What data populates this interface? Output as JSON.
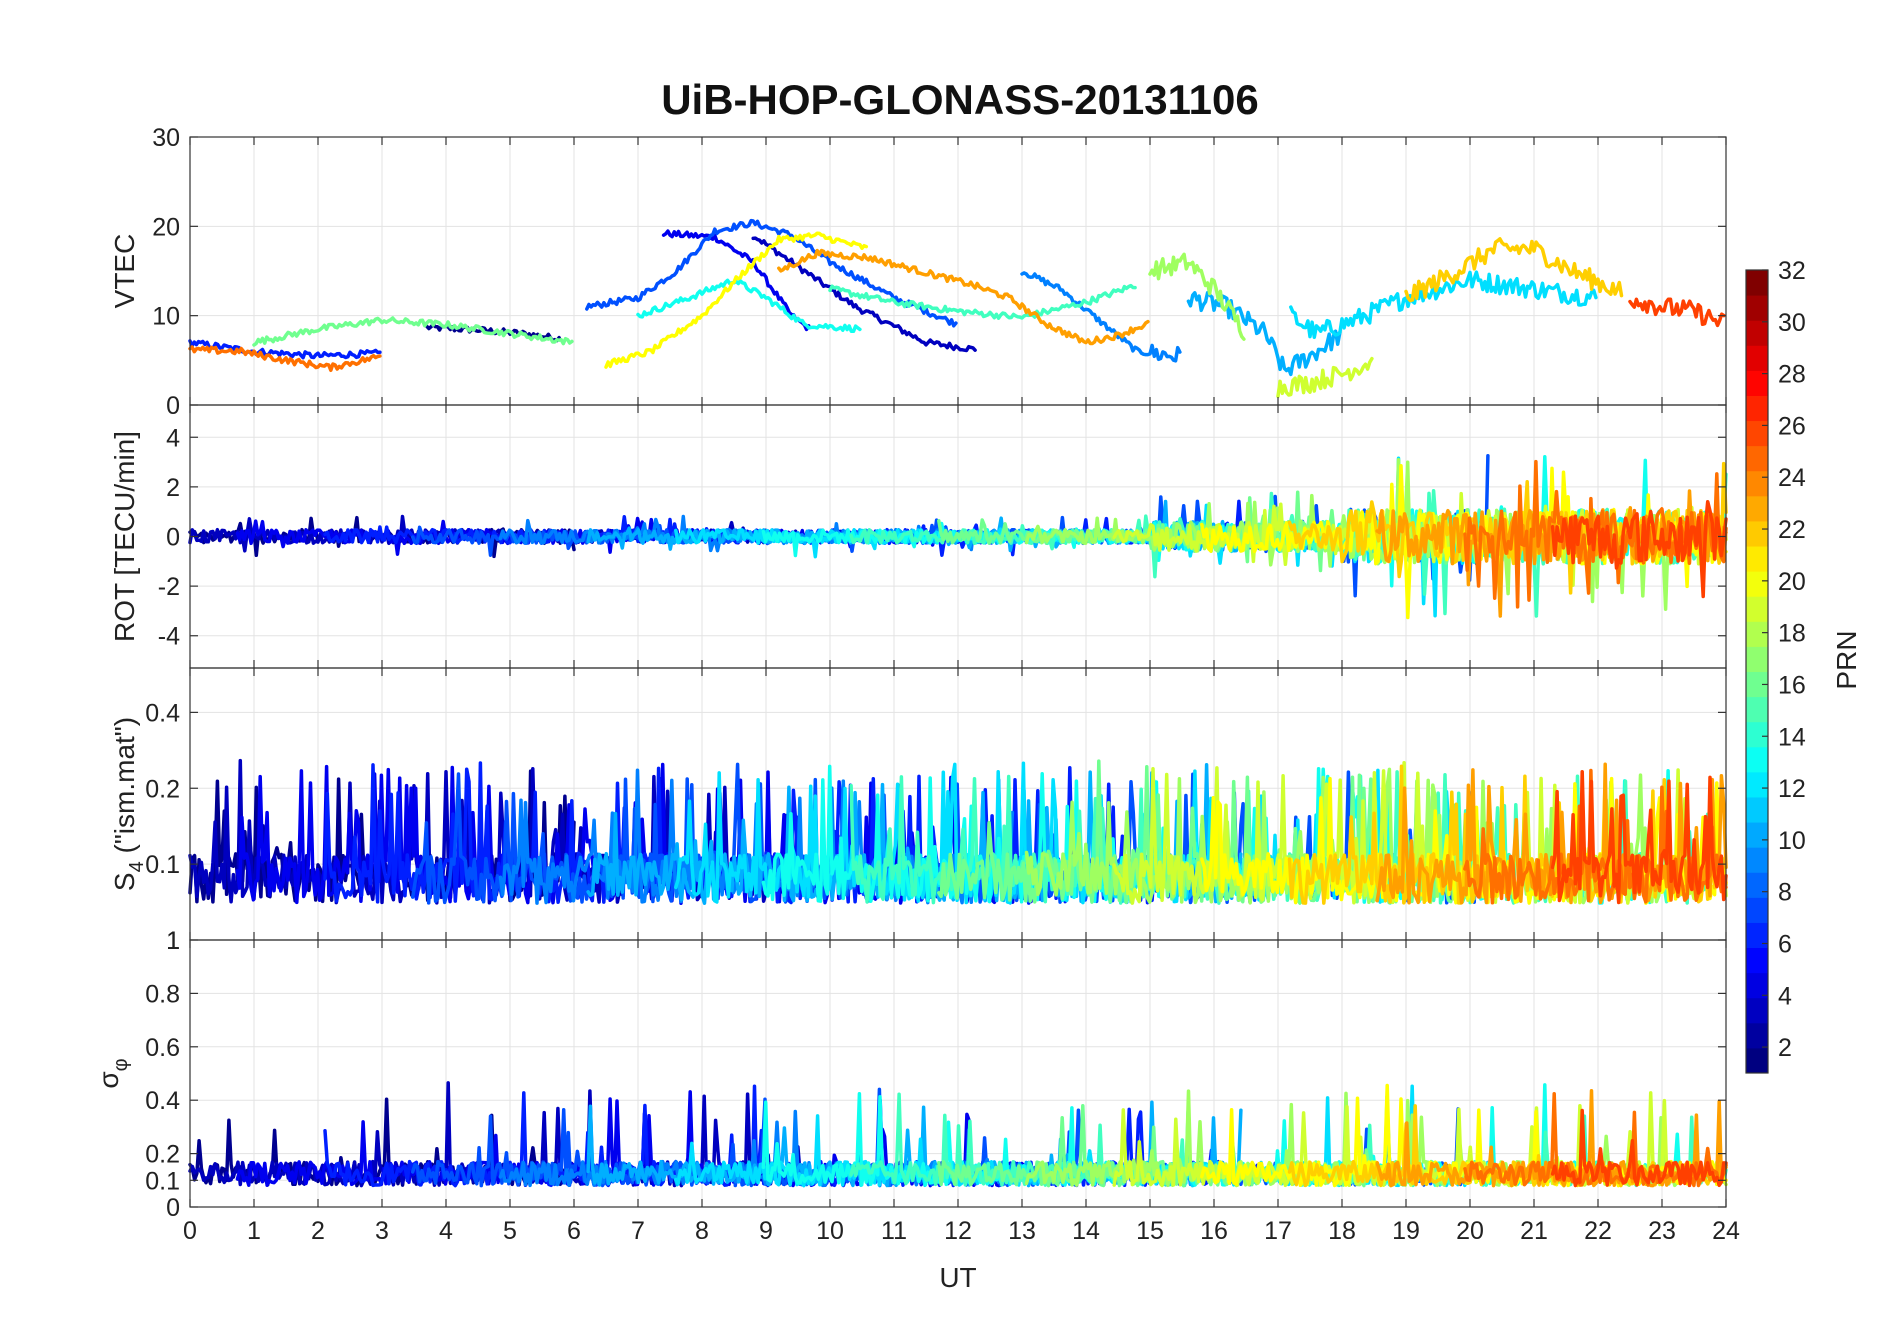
{
  "chart_data": {
    "type": "line",
    "title": "UiB-HOP-GLONASS-20131106",
    "xlabel": "UT",
    "xlim": [
      0,
      24
    ],
    "xticks": [
      0,
      1,
      2,
      3,
      4,
      5,
      6,
      7,
      8,
      9,
      10,
      11,
      12,
      13,
      14,
      15,
      16,
      17,
      18,
      19,
      20,
      21,
      22,
      23,
      24
    ],
    "panels": [
      {
        "id": "vtec",
        "ylabel": "VTEC",
        "ylim": [
          0,
          30
        ],
        "yticks": [
          0,
          10,
          20,
          30
        ]
      },
      {
        "id": "rot",
        "ylabel": "ROT [TECU/min]",
        "ylim": [
          -5.3,
          5.3
        ],
        "yticks": [
          -4,
          -2,
          0,
          2,
          4
        ]
      },
      {
        "id": "s4",
        "ylabel": "S4 (\"ism.mat\")",
        "ylabel_main": "S",
        "ylabel_sub": "4",
        "ylabel_rest": " (\"ism.mat\")",
        "ylim": [
          0.05,
          0.6
        ],
        "scale": "log",
        "yticks": [
          0.1,
          0.2,
          0.4
        ],
        "extra_tick": "1"
      },
      {
        "id": "sigphi",
        "ylabel": "σφ",
        "ylabel_main": "σ",
        "ylabel_sub": "φ",
        "ylim": [
          0,
          1
        ],
        "yticks": [
          0,
          0.1,
          0.2,
          0.4,
          0.6,
          0.8,
          1
        ]
      }
    ],
    "colorbar": {
      "label": "PRN",
      "range": [
        1,
        32
      ],
      "ticks": [
        2,
        4,
        6,
        8,
        10,
        12,
        14,
        16,
        18,
        20,
        22,
        24,
        26,
        28,
        30,
        32
      ],
      "colormap": "jet"
    },
    "series": [
      {
        "prn": 1,
        "color": "#00008f",
        "vtec": [
          [
            3.7,
            8.7
          ],
          [
            4.5,
            8.4
          ],
          [
            5.2,
            8.0
          ],
          [
            5.8,
            7.4
          ]
        ]
      },
      {
        "prn": 2,
        "color": "#0000bf",
        "vtec": [
          [
            8.8,
            19.0
          ],
          [
            9.6,
            15.0
          ],
          [
            10.4,
            11.0
          ],
          [
            11.5,
            7.0
          ],
          [
            12.3,
            6.2
          ]
        ]
      },
      {
        "prn": 3,
        "color": "#0000ef",
        "vtec": [
          [
            7.4,
            19.2
          ],
          [
            8.2,
            18.8
          ],
          [
            8.8,
            16.0
          ],
          [
            9.4,
            10.0
          ],
          [
            9.7,
            8.4
          ]
        ]
      },
      {
        "prn": 4,
        "color": "#001fff",
        "vtec": [
          [
            0.0,
            7.0
          ],
          [
            1.0,
            6.0
          ],
          [
            2.0,
            5.5
          ],
          [
            3.0,
            5.8
          ]
        ]
      },
      {
        "prn": 5,
        "color": "#0050ff",
        "vtec": [
          [
            6.2,
            11.0
          ],
          [
            7.0,
            12.0
          ],
          [
            7.6,
            15.0
          ],
          [
            8.2,
            19.5
          ],
          [
            8.8,
            20.4
          ],
          [
            9.4,
            19.0
          ],
          [
            10.0,
            16.0
          ],
          [
            11.0,
            12.0
          ],
          [
            12.0,
            9.0
          ]
        ]
      },
      {
        "prn": 6,
        "color": "#0080ff",
        "vtec": [
          [
            13.0,
            15.0
          ],
          [
            13.6,
            13.0
          ],
          [
            14.2,
            9.5
          ],
          [
            14.8,
            6.0
          ],
          [
            15.5,
            5.4
          ]
        ]
      },
      {
        "prn": 7,
        "color": "#00afff",
        "vtec": [
          [
            15.6,
            12.0
          ],
          [
            16.2,
            11.0
          ],
          [
            16.8,
            8.0
          ],
          [
            17.1,
            3.8
          ],
          [
            17.5,
            5.5
          ],
          [
            18.0,
            8.0
          ]
        ]
      },
      {
        "prn": 8,
        "color": "#00dfff",
        "vtec": [
          [
            17.2,
            10.0
          ],
          [
            17.6,
            8.0
          ],
          [
            18.2,
            9.5
          ],
          [
            19.0,
            12.0
          ],
          [
            20.0,
            14.0
          ],
          [
            21.0,
            13.0
          ],
          [
            22.0,
            12.0
          ]
        ]
      },
      {
        "prn": 9,
        "color": "#10ffef",
        "vtec": [
          [
            7.0,
            10.0
          ],
          [
            7.8,
            12.0
          ],
          [
            8.5,
            14.0
          ],
          [
            9.0,
            12.0
          ],
          [
            9.6,
            9.0
          ],
          [
            10.5,
            8.5
          ]
        ]
      },
      {
        "prn": 10,
        "color": "#40ffbf",
        "vtec": [
          [
            10.0,
            13.0
          ],
          [
            11.0,
            11.5
          ],
          [
            12.0,
            10.5
          ],
          [
            13.0,
            9.8
          ],
          [
            14.0,
            11.5
          ],
          [
            14.8,
            13.5
          ]
        ]
      },
      {
        "prn": 11,
        "color": "#70ff8f",
        "vtec": [
          [
            1.0,
            7.0
          ],
          [
            2.0,
            8.5
          ],
          [
            3.0,
            9.5
          ],
          [
            4.0,
            9.0
          ],
          [
            5.0,
            8.0
          ],
          [
            6.0,
            7.0
          ]
        ]
      },
      {
        "prn": 12,
        "color": "#9fff60",
        "vtec": [
          [
            15.0,
            15.0
          ],
          [
            15.6,
            16.0
          ],
          [
            16.0,
            13.0
          ],
          [
            16.5,
            8.0
          ]
        ]
      },
      {
        "prn": 13,
        "color": "#cfff30",
        "vtec": [
          [
            17.0,
            2.0
          ],
          [
            17.5,
            2.5
          ],
          [
            18.0,
            3.5
          ],
          [
            18.5,
            5.0
          ]
        ]
      },
      {
        "prn": 14,
        "color": "#ffff00",
        "vtec": [
          [
            6.5,
            4.5
          ],
          [
            7.2,
            6.0
          ],
          [
            8.0,
            10.0
          ],
          [
            8.6,
            14.5
          ],
          [
            9.2,
            18.5
          ],
          [
            9.8,
            19.0
          ],
          [
            10.6,
            17.5
          ]
        ]
      },
      {
        "prn": 15,
        "color": "#ffcf00",
        "vtec": [
          [
            19.0,
            12.0
          ],
          [
            19.8,
            15.0
          ],
          [
            20.4,
            17.5
          ],
          [
            21.0,
            17.5
          ],
          [
            21.6,
            15.0
          ],
          [
            22.4,
            12.5
          ]
        ]
      },
      {
        "prn": 16,
        "color": "#ff9f00",
        "vtec": [
          [
            9.2,
            15.0
          ],
          [
            9.8,
            17.0
          ],
          [
            10.6,
            16.5
          ],
          [
            11.4,
            15.0
          ],
          [
            12.2,
            13.5
          ],
          [
            12.8,
            12.0
          ],
          [
            13.4,
            9.0
          ],
          [
            14.0,
            7.0
          ],
          [
            14.5,
            7.8
          ],
          [
            15.0,
            9.2
          ]
        ]
      },
      {
        "prn": 17,
        "color": "#ff7000",
        "vtec": [
          [
            0.0,
            6.2
          ],
          [
            0.8,
            6.0
          ],
          [
            1.5,
            5.0
          ],
          [
            2.2,
            4.2
          ],
          [
            3.0,
            5.5
          ]
        ]
      },
      {
        "prn": 18,
        "color": "#ff4000",
        "vtec": [
          [
            22.5,
            12.0
          ],
          [
            23.0,
            11.0
          ],
          [
            23.5,
            10.5
          ],
          [
            24.0,
            9.0
          ]
        ]
      }
    ]
  }
}
